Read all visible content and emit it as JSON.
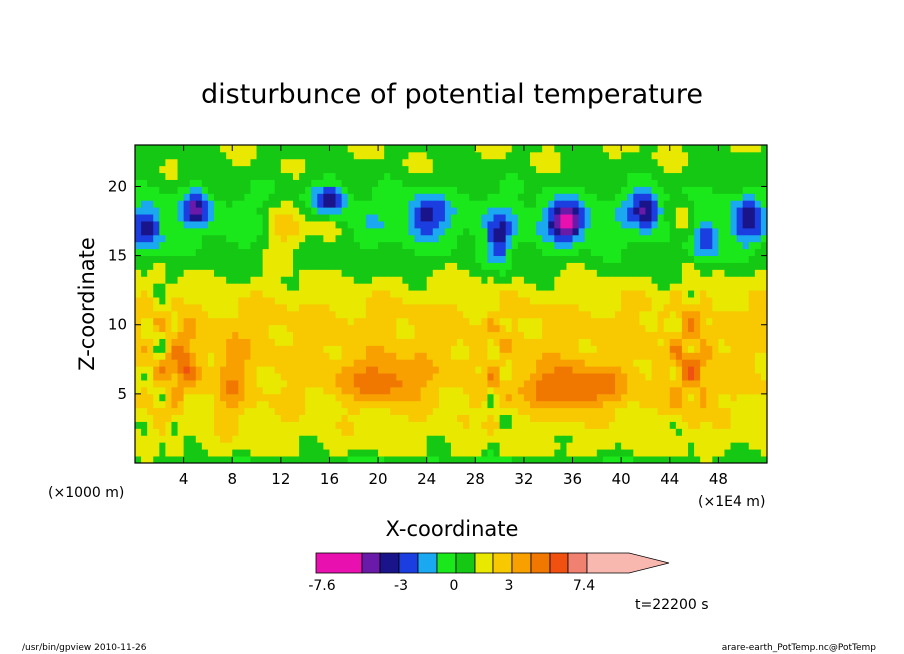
{
  "chart_data": {
    "type": "heatmap",
    "title": "disturbunce of potential temperature",
    "xlabel": "X-coordinate",
    "ylabel": "Z-coordinate",
    "x_unit_left": "(×1000 m)",
    "x_unit_right": "(×1E4 m)",
    "xlim": [
      0,
      52
    ],
    "ylim": [
      0,
      23
    ],
    "x_ticks": [
      4,
      8,
      12,
      16,
      20,
      24,
      28,
      32,
      36,
      40,
      44,
      48
    ],
    "y_ticks": [
      5,
      10,
      15,
      20
    ],
    "colorbar": {
      "labels": [
        "-7.6",
        "-3",
        "0",
        "3",
        "7.4"
      ],
      "levels": [
        -7.6,
        -6,
        -5,
        -4,
        -3,
        -2,
        -1,
        0,
        1,
        2,
        3,
        4,
        5,
        7.4
      ],
      "colors": [
        "#e811b0",
        "#6a1aa8",
        "#1a148a",
        "#1a3ee0",
        "#1aa8f0",
        "#1ae81a",
        "#14c814",
        "#e8e800",
        "#f8c800",
        "#f8a000",
        "#f07800",
        "#f05010",
        "#f08070",
        "#f8b8b0"
      ]
    },
    "time_label": "t=22200 s"
  },
  "footer": {
    "left": "/usr/bin/gpview   2010-11-26",
    "right": "arare-earth_PotTemp.nc@PotTemp"
  }
}
